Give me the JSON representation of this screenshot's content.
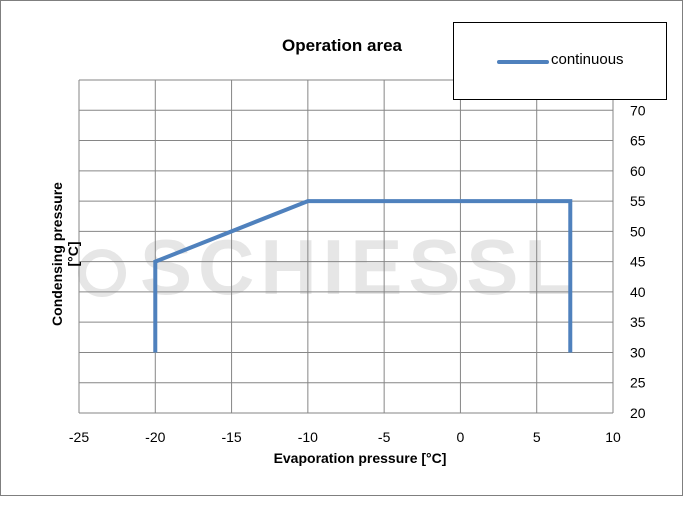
{
  "chart_data": {
    "type": "line",
    "title": "Operation area",
    "xlabel": "Evaporation pressure [°C]",
    "ylabel": "Condensing pressure [°C]",
    "xlim": [
      -25,
      10
    ],
    "ylim": [
      20,
      75
    ],
    "xticks": [
      -25,
      -20,
      -15,
      -10,
      -5,
      0,
      5,
      10
    ],
    "yticks": [
      20,
      25,
      30,
      35,
      40,
      45,
      50,
      55,
      60,
      65,
      70
    ],
    "y_axis_side": "right",
    "grid": true,
    "legend_position": "top-right",
    "series": [
      {
        "name": "continuous",
        "color": "#4f81bd",
        "x": [
          -20,
          -20,
          -10,
          7.2,
          7.2
        ],
        "y": [
          30,
          45,
          55,
          55,
          30
        ]
      }
    ]
  },
  "watermark": "SCHIESSL",
  "colors": {
    "grid": "#868686",
    "series": "#4f81bd"
  }
}
